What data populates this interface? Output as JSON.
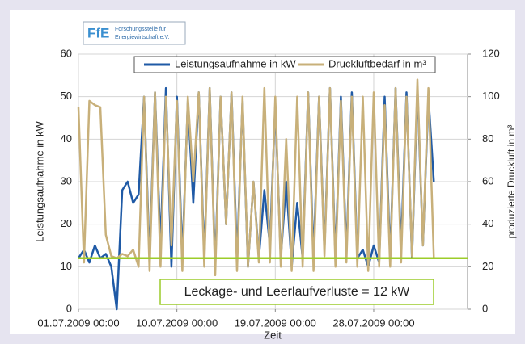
{
  "logo": {
    "mark": "FfE",
    "lines": [
      "Forschungsstelle für",
      "Energiewirtschaft e.V."
    ]
  },
  "chart_data": {
    "type": "line",
    "y_label": "Leistungsaufnahme in kW",
    "y2_label": "produzierte Druckluft in m³",
    "x_label": "Zeit",
    "annotation": "Leckage- und Leerlaufverluste = 12 kW",
    "reference_line": {
      "value": 12,
      "color": "#9ccc2a"
    },
    "grid": true,
    "legend": "top",
    "xlim": [
      "2009-07-01 00:00",
      "2009-08-05 14:00"
    ],
    "xticks": [
      {
        "value": "2009-07-01 00:00",
        "label": "01.07.2009 00:00"
      },
      {
        "value": "2009-07-10 00:00",
        "label": "10.07.2009 00:00"
      },
      {
        "value": "2009-07-19 00:00",
        "label": "19.07.2009 00:00"
      },
      {
        "value": "2009-07-28 00:00",
        "label": "28.07.2009 00:00"
      }
    ],
    "ylim": [
      0,
      60
    ],
    "yticks": [
      0,
      10,
      20,
      30,
      40,
      50,
      60
    ],
    "y2lim": [
      0,
      120
    ],
    "y2ticks": [
      0,
      20,
      40,
      60,
      80,
      100,
      120
    ],
    "x": [
      "2009-07-01 00:00",
      "2009-07-01 12:00",
      "2009-07-02 00:00",
      "2009-07-02 12:00",
      "2009-07-03 00:00",
      "2009-07-03 12:00",
      "2009-07-04 00:00",
      "2009-07-04 12:00",
      "2009-07-05 00:00",
      "2009-07-05 12:00",
      "2009-07-06 00:00",
      "2009-07-06 12:00",
      "2009-07-07 00:00",
      "2009-07-07 12:00",
      "2009-07-08 00:00",
      "2009-07-08 12:00",
      "2009-07-09 00:00",
      "2009-07-09 12:00",
      "2009-07-10 00:00",
      "2009-07-10 12:00",
      "2009-07-11 00:00",
      "2009-07-11 12:00",
      "2009-07-12 00:00",
      "2009-07-12 12:00",
      "2009-07-13 00:00",
      "2009-07-13 12:00",
      "2009-07-14 00:00",
      "2009-07-14 12:00",
      "2009-07-15 00:00",
      "2009-07-15 12:00",
      "2009-07-16 00:00",
      "2009-07-16 12:00",
      "2009-07-17 00:00",
      "2009-07-17 12:00",
      "2009-07-18 00:00",
      "2009-07-18 12:00",
      "2009-07-19 00:00",
      "2009-07-19 12:00",
      "2009-07-20 00:00",
      "2009-07-20 12:00",
      "2009-07-21 00:00",
      "2009-07-21 12:00",
      "2009-07-22 00:00",
      "2009-07-22 12:00",
      "2009-07-23 00:00",
      "2009-07-23 12:00",
      "2009-07-24 00:00",
      "2009-07-24 12:00",
      "2009-07-25 00:00",
      "2009-07-25 12:00",
      "2009-07-26 00:00",
      "2009-07-26 12:00",
      "2009-07-27 00:00",
      "2009-07-27 12:00",
      "2009-07-28 00:00",
      "2009-07-28 12:00",
      "2009-07-29 00:00",
      "2009-07-29 12:00",
      "2009-07-30 00:00",
      "2009-07-30 12:00",
      "2009-07-31 00:00",
      "2009-07-31 12:00",
      "2009-08-01 00:00",
      "2009-08-01 12:00",
      "2009-08-02 00:00",
      "2009-08-02 12:00"
    ],
    "series": [
      {
        "name": "Leistungsaufnahme in kW",
        "color": "#1f5aa6",
        "values": [
          12,
          14,
          11,
          15,
          12,
          13,
          10,
          0,
          28,
          30,
          25,
          27,
          50,
          12,
          51,
          15,
          52,
          10,
          50,
          12,
          49,
          25,
          51,
          12,
          52,
          10,
          50,
          20,
          51,
          12,
          49,
          10,
          30,
          12,
          28,
          15,
          48,
          12,
          30,
          10,
          25,
          12,
          51,
          12,
          50,
          14,
          52,
          12,
          50,
          13,
          51,
          12,
          14,
          10,
          15,
          11,
          50,
          12,
          52,
          14,
          51,
          12,
          52,
          15,
          50,
          30
        ]
      },
      {
        "name": "Druckluftbedarf in m³",
        "color": "#c8b07a",
        "axis": "y2",
        "values": [
          95,
          22,
          98,
          96,
          95,
          35,
          25,
          24,
          26,
          25,
          28,
          20,
          100,
          18,
          102,
          20,
          100,
          30,
          98,
          18,
          100,
          60,
          102,
          20,
          104,
          16,
          100,
          40,
          102,
          18,
          100,
          20,
          60,
          22,
          104,
          22,
          100,
          20,
          80,
          18,
          100,
          20,
          102,
          18,
          100,
          25,
          104,
          20,
          98,
          22,
          100,
          20,
          100,
          18,
          102,
          20,
          96,
          20,
          104,
          22,
          100,
          25,
          108,
          30,
          104,
          24
        ]
      }
    ]
  }
}
